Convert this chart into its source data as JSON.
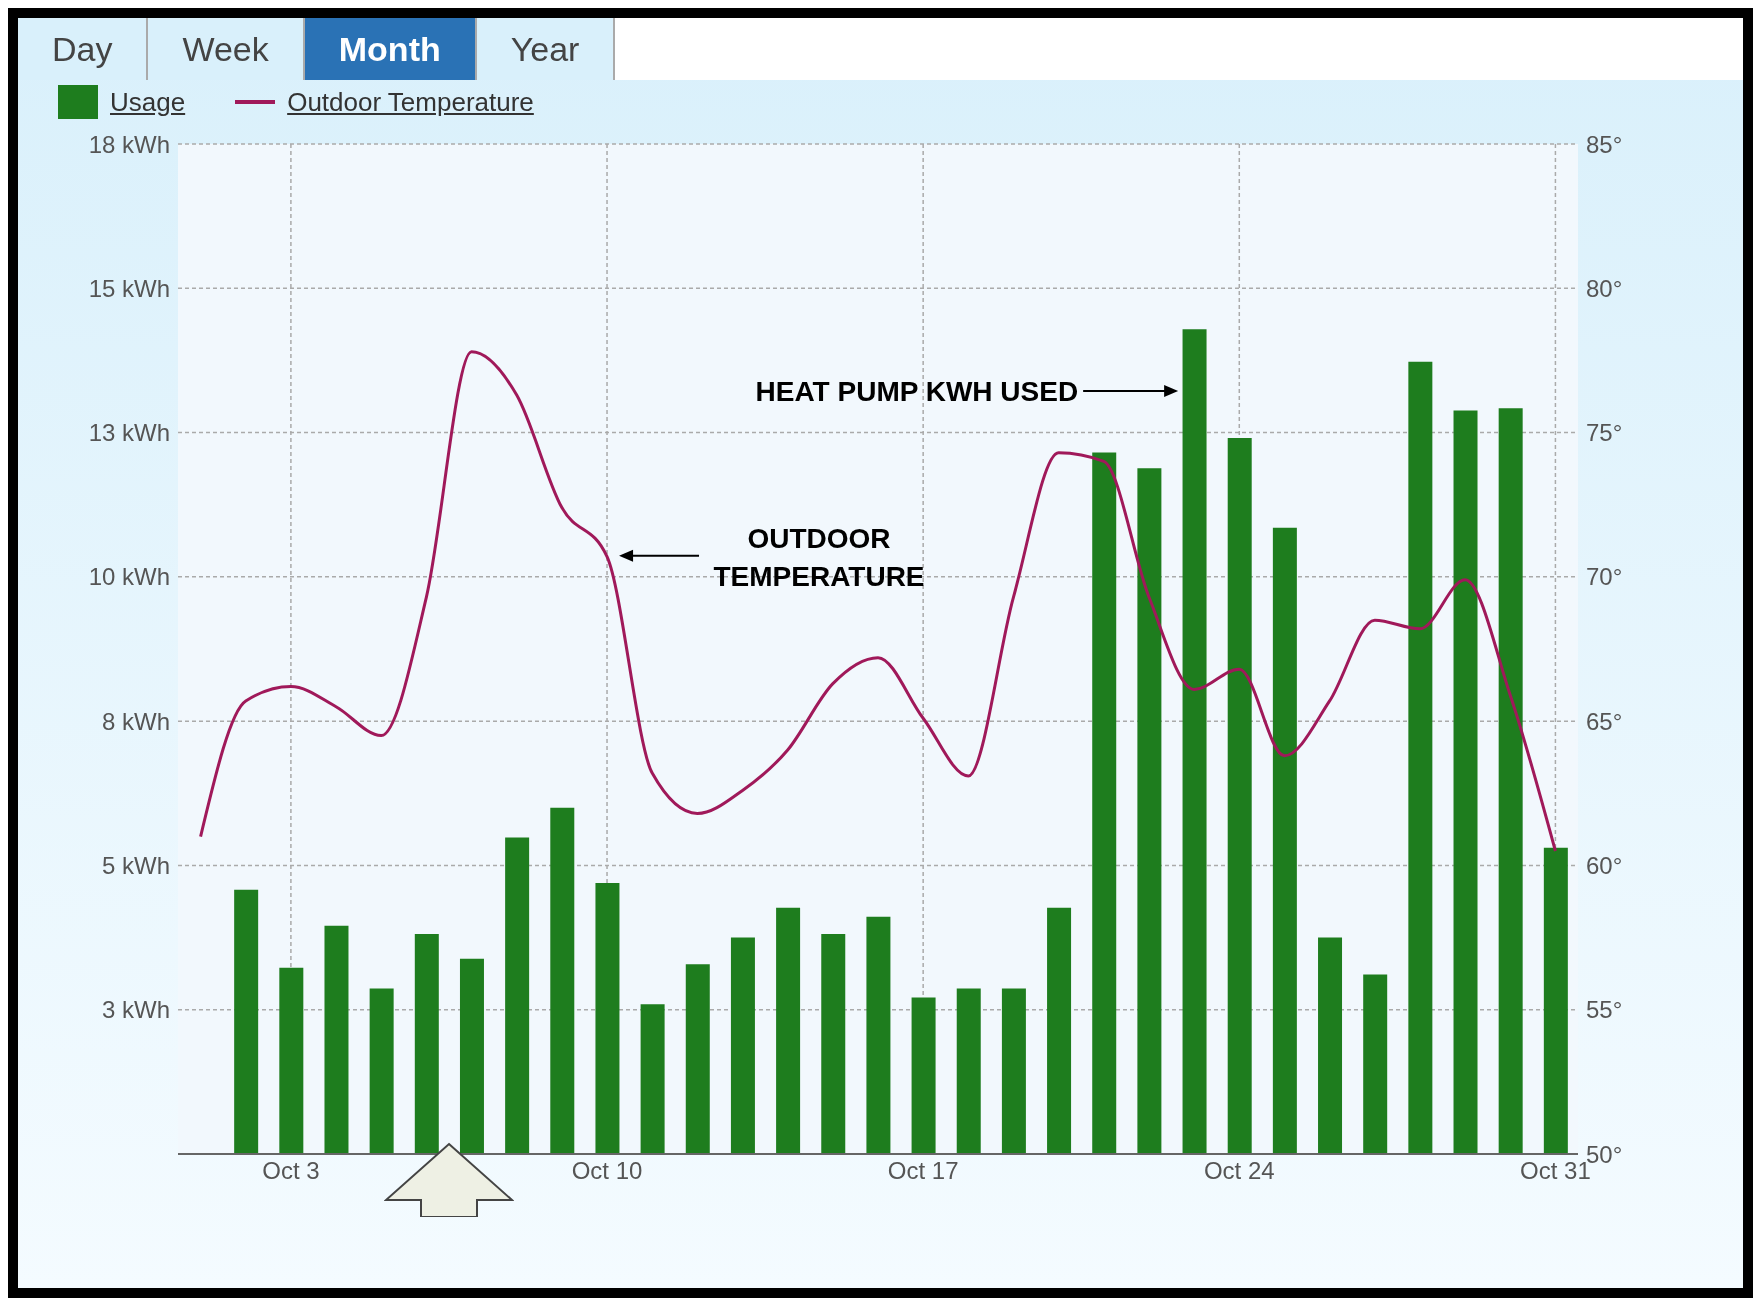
{
  "chart_data": {
    "type": "bar",
    "annotations": [
      "Day",
      "Week",
      "Month",
      "Year",
      "HEAT PUMP KWH USED",
      "OUTDOOR TEMPERATURE"
    ],
    "categories": [
      null,
      null,
      "Oct 3",
      null,
      null,
      null,
      null,
      null,
      null,
      "Oct 10",
      null,
      null,
      null,
      null,
      null,
      null,
      "Oct 17",
      null,
      null,
      null,
      null,
      null,
      null,
      "Oct 24",
      null,
      null,
      null,
      null,
      null,
      null,
      "Oct 31"
    ],
    "ylim": [
      0,
      18
    ],
    "yticks": [
      {
        "value": 0,
        "label": null
      },
      {
        "value": 2.571,
        "label": "3 kWh"
      },
      {
        "value": 5.143,
        "label": "5 kWh"
      },
      {
        "value": 7.714,
        "label": "8 kWh"
      },
      {
        "value": 10.286,
        "label": "10 kWh"
      },
      {
        "value": 12.857,
        "label": "13 kWh"
      },
      {
        "value": 15.429,
        "label": "15 kWh"
      },
      {
        "value": 18,
        "label": "18 kWh"
      }
    ],
    "y2lim": [
      50,
      85
    ],
    "y2ticks": [
      {
        "value": 50,
        "label": "50°"
      },
      {
        "value": 55,
        "label": "55°"
      },
      {
        "value": 60,
        "label": "60°"
      },
      {
        "value": 65,
        "label": "65°"
      },
      {
        "value": 70,
        "label": "70°"
      },
      {
        "value": 75,
        "label": "75°"
      },
      {
        "value": 80,
        "label": "80°"
      },
      {
        "value": 85,
        "label": "85°"
      }
    ],
    "grid": true,
    "legend": "top left",
    "series": [
      {
        "name": "Usage",
        "color": "#1e7d1e",
        "values": [
          null,
          4.71,
          3.32,
          4.07,
          2.95,
          3.92,
          3.48,
          5.64,
          6.17,
          4.83,
          2.67,
          3.38,
          3.86,
          4.39,
          3.92,
          4.23,
          2.79,
          2.95,
          2.95,
          4.39,
          12.5,
          12.22,
          14.7,
          12.76,
          11.16,
          3.86,
          3.2,
          14.12,
          13.25,
          13.29,
          5.46
        ]
      },
      {
        "name": "Outdoor Temperature",
        "type": "line",
        "axis": "y2",
        "color": "#a0195a",
        "line_style": "solid",
        "values": [
          61.0,
          65.7,
          66.2,
          65.5,
          64.5,
          69.3,
          77.8,
          76.3,
          72.4,
          70.7,
          63.2,
          61.8,
          62.6,
          64.0,
          66.3,
          67.2,
          65.1,
          63.1,
          69.3,
          74.3,
          74.0,
          69.3,
          66.1,
          66.8,
          63.8,
          65.7,
          68.5,
          68.2,
          69.9,
          65.9,
          60.5
        ]
      }
    ]
  }
}
